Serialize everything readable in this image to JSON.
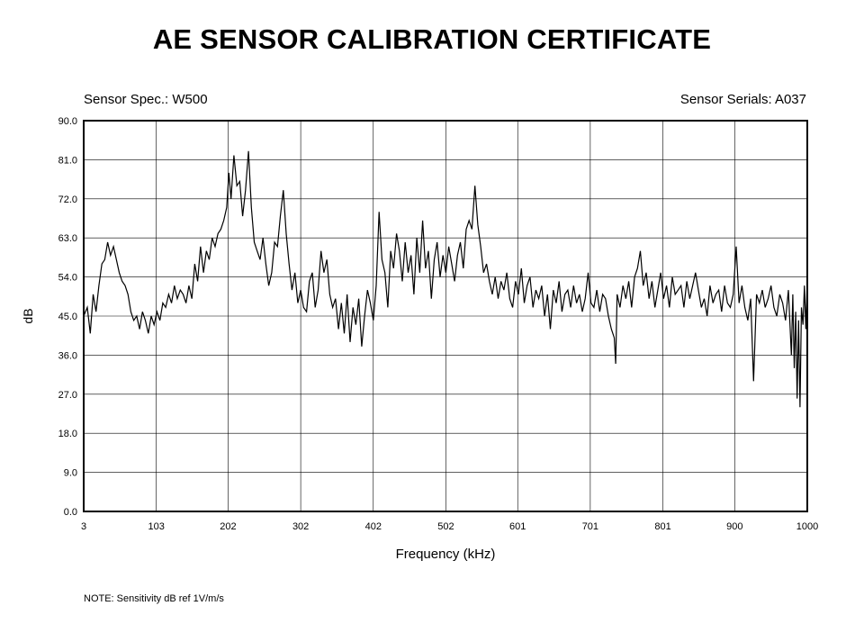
{
  "header": {
    "title": "AE SENSOR CALIBRATION CERTIFICATE",
    "sensor_spec": "Sensor Spec.: W500",
    "sensor_serials": "Sensor Serials: A037"
  },
  "footer": {
    "note": "NOTE:  Sensitivity dB ref 1V/m/s"
  },
  "chart_data": {
    "type": "line",
    "xlabel": "Frequency (kHz)",
    "ylabel": "dB",
    "xlim": [
      3,
      1000
    ],
    "ylim": [
      0,
      90
    ],
    "grid": true,
    "x_ticks": [
      "3",
      "103",
      "202",
      "302",
      "402",
      "502",
      "601",
      "701",
      "801",
      "900",
      "1000"
    ],
    "y_ticks": [
      "0.0",
      "9.0",
      "18.0",
      "27.0",
      "36.0",
      "45.0",
      "54.0",
      "63.0",
      "72.0",
      "81.0",
      "90.0"
    ],
    "x_tick_values": [
      3,
      103,
      202,
      302,
      402,
      502,
      601,
      701,
      801,
      900,
      1000
    ],
    "y_tick_values": [
      0,
      9,
      18,
      27,
      36,
      45,
      54,
      63,
      72,
      81,
      90
    ],
    "series": [
      {
        "color": "#000000",
        "points": [
          [
            3,
            45
          ],
          [
            8,
            47
          ],
          [
            12,
            41
          ],
          [
            16,
            50
          ],
          [
            20,
            46
          ],
          [
            24,
            52
          ],
          [
            28,
            57
          ],
          [
            32,
            58
          ],
          [
            36,
            62
          ],
          [
            40,
            59
          ],
          [
            44,
            61
          ],
          [
            48,
            58
          ],
          [
            52,
            55
          ],
          [
            56,
            53
          ],
          [
            60,
            52
          ],
          [
            64,
            50
          ],
          [
            68,
            46
          ],
          [
            72,
            44
          ],
          [
            76,
            45
          ],
          [
            80,
            42
          ],
          [
            84,
            46
          ],
          [
            88,
            44
          ],
          [
            92,
            41
          ],
          [
            96,
            45
          ],
          [
            100,
            43
          ],
          [
            104,
            46
          ],
          [
            108,
            44
          ],
          [
            112,
            48
          ],
          [
            116,
            47
          ],
          [
            120,
            50
          ],
          [
            124,
            48
          ],
          [
            128,
            52
          ],
          [
            132,
            49
          ],
          [
            136,
            51
          ],
          [
            140,
            50
          ],
          [
            144,
            48
          ],
          [
            148,
            52
          ],
          [
            152,
            49
          ],
          [
            156,
            57
          ],
          [
            160,
            53
          ],
          [
            164,
            61
          ],
          [
            168,
            55
          ],
          [
            172,
            60
          ],
          [
            176,
            58
          ],
          [
            180,
            63
          ],
          [
            184,
            61
          ],
          [
            188,
            64
          ],
          [
            192,
            65
          ],
          [
            196,
            67
          ],
          [
            200,
            70
          ],
          [
            203,
            78
          ],
          [
            206,
            72
          ],
          [
            210,
            82
          ],
          [
            214,
            75
          ],
          [
            218,
            76
          ],
          [
            222,
            68
          ],
          [
            226,
            74
          ],
          [
            230,
            83
          ],
          [
            234,
            70
          ],
          [
            238,
            62
          ],
          [
            242,
            60
          ],
          [
            246,
            58
          ],
          [
            250,
            63
          ],
          [
            254,
            57
          ],
          [
            258,
            52
          ],
          [
            262,
            55
          ],
          [
            266,
            62
          ],
          [
            270,
            61
          ],
          [
            274,
            68
          ],
          [
            278,
            74
          ],
          [
            282,
            64
          ],
          [
            286,
            57
          ],
          [
            290,
            51
          ],
          [
            294,
            55
          ],
          [
            298,
            48
          ],
          [
            302,
            51
          ],
          [
            306,
            47
          ],
          [
            310,
            46
          ],
          [
            314,
            53
          ],
          [
            318,
            55
          ],
          [
            322,
            47
          ],
          [
            326,
            51
          ],
          [
            330,
            60
          ],
          [
            334,
            55
          ],
          [
            338,
            58
          ],
          [
            342,
            50
          ],
          [
            346,
            47
          ],
          [
            350,
            49
          ],
          [
            354,
            42
          ],
          [
            358,
            48
          ],
          [
            362,
            41
          ],
          [
            366,
            50
          ],
          [
            370,
            39
          ],
          [
            374,
            47
          ],
          [
            378,
            43
          ],
          [
            382,
            49
          ],
          [
            386,
            38
          ],
          [
            390,
            45
          ],
          [
            394,
            51
          ],
          [
            398,
            48
          ],
          [
            402,
            44
          ],
          [
            406,
            52
          ],
          [
            410,
            69
          ],
          [
            414,
            58
          ],
          [
            418,
            55
          ],
          [
            422,
            47
          ],
          [
            426,
            60
          ],
          [
            430,
            56
          ],
          [
            434,
            64
          ],
          [
            438,
            60
          ],
          [
            442,
            53
          ],
          [
            446,
            62
          ],
          [
            450,
            55
          ],
          [
            454,
            59
          ],
          [
            458,
            50
          ],
          [
            462,
            63
          ],
          [
            466,
            55
          ],
          [
            470,
            67
          ],
          [
            474,
            56
          ],
          [
            478,
            60
          ],
          [
            482,
            49
          ],
          [
            486,
            58
          ],
          [
            490,
            62
          ],
          [
            494,
            54
          ],
          [
            498,
            59
          ],
          [
            502,
            55
          ],
          [
            506,
            61
          ],
          [
            510,
            57
          ],
          [
            514,
            53
          ],
          [
            518,
            59
          ],
          [
            522,
            62
          ],
          [
            526,
            56
          ],
          [
            530,
            65
          ],
          [
            534,
            67
          ],
          [
            538,
            65
          ],
          [
            542,
            75
          ],
          [
            546,
            66
          ],
          [
            550,
            61
          ],
          [
            554,
            55
          ],
          [
            558,
            57
          ],
          [
            562,
            53
          ],
          [
            566,
            50
          ],
          [
            570,
            54
          ],
          [
            574,
            49
          ],
          [
            578,
            53
          ],
          [
            582,
            51
          ],
          [
            586,
            55
          ],
          [
            590,
            49
          ],
          [
            594,
            47
          ],
          [
            598,
            53
          ],
          [
            602,
            50
          ],
          [
            606,
            56
          ],
          [
            610,
            48
          ],
          [
            614,
            52
          ],
          [
            618,
            54
          ],
          [
            622,
            47
          ],
          [
            626,
            51
          ],
          [
            630,
            49
          ],
          [
            634,
            52
          ],
          [
            638,
            45
          ],
          [
            642,
            50
          ],
          [
            646,
            42
          ],
          [
            650,
            51
          ],
          [
            654,
            48
          ],
          [
            658,
            53
          ],
          [
            662,
            46
          ],
          [
            666,
            50
          ],
          [
            670,
            51
          ],
          [
            674,
            47
          ],
          [
            678,
            52
          ],
          [
            682,
            48
          ],
          [
            686,
            50
          ],
          [
            690,
            46
          ],
          [
            694,
            49
          ],
          [
            698,
            55
          ],
          [
            702,
            48
          ],
          [
            706,
            47
          ],
          [
            710,
            51
          ],
          [
            714,
            46
          ],
          [
            718,
            50
          ],
          [
            722,
            49
          ],
          [
            726,
            45
          ],
          [
            730,
            42
          ],
          [
            734,
            40
          ],
          [
            736,
            34
          ],
          [
            738,
            50
          ],
          [
            742,
            47
          ],
          [
            746,
            52
          ],
          [
            750,
            49
          ],
          [
            754,
            53
          ],
          [
            758,
            47
          ],
          [
            762,
            54
          ],
          [
            766,
            56
          ],
          [
            770,
            60
          ],
          [
            774,
            52
          ],
          [
            778,
            55
          ],
          [
            782,
            49
          ],
          [
            786,
            53
          ],
          [
            790,
            47
          ],
          [
            794,
            51
          ],
          [
            798,
            55
          ],
          [
            802,
            49
          ],
          [
            806,
            52
          ],
          [
            810,
            47
          ],
          [
            814,
            54
          ],
          [
            818,
            50
          ],
          [
            822,
            51
          ],
          [
            826,
            52
          ],
          [
            830,
            47
          ],
          [
            834,
            53
          ],
          [
            838,
            49
          ],
          [
            842,
            52
          ],
          [
            846,
            55
          ],
          [
            850,
            51
          ],
          [
            854,
            47
          ],
          [
            858,
            49
          ],
          [
            862,
            45
          ],
          [
            866,
            52
          ],
          [
            870,
            48
          ],
          [
            874,
            50
          ],
          [
            878,
            51
          ],
          [
            882,
            46
          ],
          [
            886,
            52
          ],
          [
            890,
            48
          ],
          [
            894,
            47
          ],
          [
            898,
            50
          ],
          [
            902,
            61
          ],
          [
            906,
            48
          ],
          [
            910,
            52
          ],
          [
            914,
            47
          ],
          [
            918,
            44
          ],
          [
            922,
            49
          ],
          [
            926,
            30
          ],
          [
            930,
            50
          ],
          [
            934,
            48
          ],
          [
            938,
            51
          ],
          [
            942,
            47
          ],
          [
            946,
            49
          ],
          [
            950,
            52
          ],
          [
            954,
            47
          ],
          [
            958,
            45
          ],
          [
            962,
            50
          ],
          [
            966,
            48
          ],
          [
            970,
            44
          ],
          [
            974,
            51
          ],
          [
            978,
            36
          ],
          [
            980,
            50
          ],
          [
            982,
            33
          ],
          [
            984,
            46
          ],
          [
            986,
            26
          ],
          [
            988,
            44
          ],
          [
            990,
            24
          ],
          [
            992,
            47
          ],
          [
            994,
            43
          ],
          [
            996,
            52
          ],
          [
            998,
            42
          ],
          [
            1000,
            54
          ]
        ]
      }
    ]
  }
}
